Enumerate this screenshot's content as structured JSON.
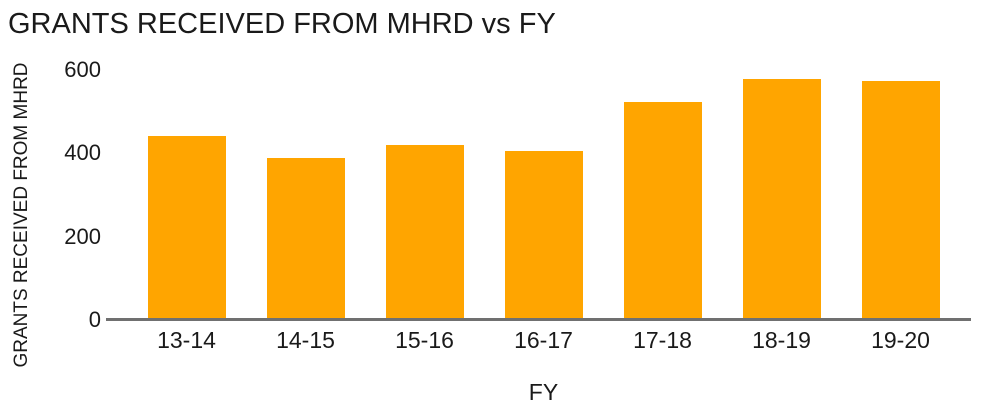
{
  "chart_data": {
    "type": "bar",
    "title": "GRANTS RECEIVED FROM MHRD vs FY",
    "xlabel": "FY",
    "ylabel": "GRANTS RECEIVED FROM MHRD",
    "categories": [
      "13-14",
      "14-15",
      "15-16",
      "16-17",
      "17-18",
      "18-19",
      "19-20"
    ],
    "values": [
      442,
      389,
      419,
      405,
      523,
      578,
      574
    ],
    "yticks": [
      0,
      200,
      400,
      600
    ],
    "ylim": [
      0,
      600
    ],
    "grid": false,
    "legend": false,
    "bar_color": "#FFA500",
    "axis_color": "#707070",
    "text_color": "#1A1A1A",
    "background_color": "#FFFFFF"
  }
}
